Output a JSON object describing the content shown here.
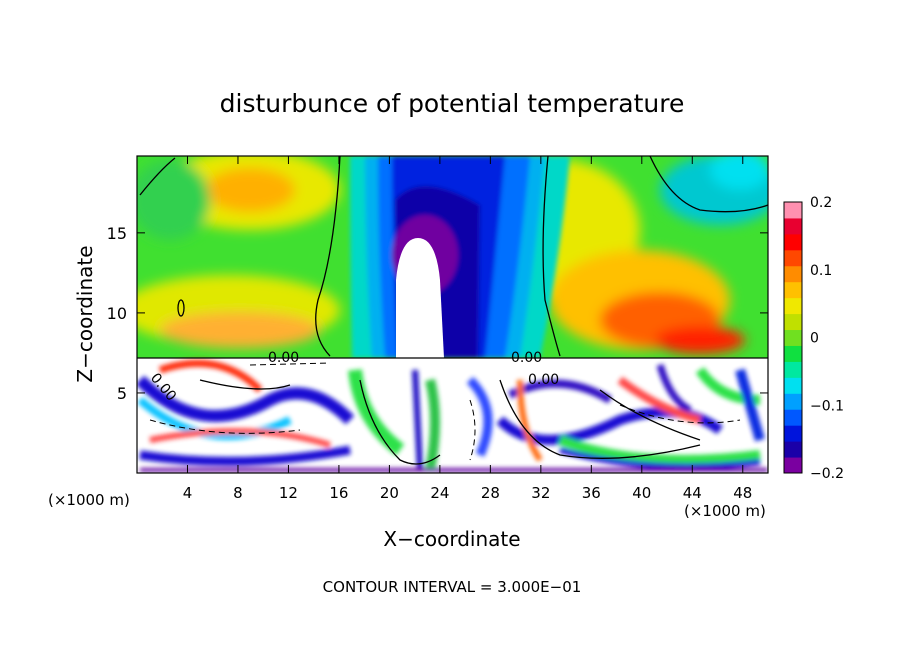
{
  "chart_data": {
    "type": "heatmap",
    "title": "disturbunce of potential temperature",
    "xlabel": "X−coordinate",
    "ylabel": "Z−coordinate",
    "x_unit": "(×1000 m)",
    "x_unit_right": "(×1000 m)",
    "xlim": [
      0,
      50
    ],
    "ylim": [
      0,
      19.8
    ],
    "x_ticks": [
      4,
      8,
      12,
      16,
      20,
      24,
      28,
      32,
      36,
      40,
      44,
      48
    ],
    "x_tick_labels": [
      "4",
      "8",
      "12",
      "16",
      "20",
      "24",
      "28",
      "32",
      "36",
      "40",
      "44",
      "48"
    ],
    "y_ticks": [
      5,
      10,
      15
    ],
    "y_tick_labels": [
      "5",
      "10",
      "15"
    ],
    "colorbar": {
      "range": [
        -0.2,
        0.2
      ],
      "tick_values": [
        0.2,
        0.1,
        0,
        -0.1,
        -0.2
      ],
      "tick_labels": [
        "0.2",
        "0.1",
        "0",
        "−0.1",
        "−0.2"
      ],
      "colors": [
        "#7a00a0",
        "#1a00a8",
        "#0014dc",
        "#0058ff",
        "#00a0ff",
        "#00e0f0",
        "#00e8a0",
        "#10e040",
        "#70e020",
        "#c0e000",
        "#f0e800",
        "#ffc000",
        "#ff8c00",
        "#ff4800",
        "#ff0000",
        "#e80030",
        "#ff90b0"
      ]
    },
    "contour_labels": [
      "0.00",
      "0.00",
      "0.00",
      "0.00"
    ],
    "footer": "CONTOUR INTERVAL = 3.000E−01"
  }
}
